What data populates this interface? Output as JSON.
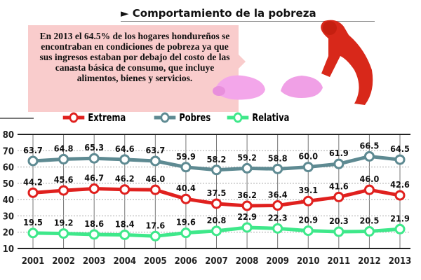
{
  "title": "► Comportamiento de la pobreza",
  "note": "En 2013 el 64.5% de los hogares hondureños se encontraban en condiciones de pobreza ya que sus ingresos estaban por debajo del costo de las canasta básica de consumo, que incluye alimentos, bienes y servicios.",
  "illustration": "broken piggy bank and person",
  "chart_data": {
    "type": "line",
    "x": [
      "2001",
      "2002",
      "2003",
      "2004",
      "2005",
      "2006",
      "2007",
      "2008",
      "2009",
      "2010",
      "2011",
      "2012",
      "2013"
    ],
    "ylim": [
      10,
      80
    ],
    "yticks": [
      10,
      20,
      30,
      40,
      50,
      60,
      70,
      80
    ],
    "grid": true,
    "legend_position": "top",
    "series": [
      {
        "name": "Extrema",
        "color": "#e0201e",
        "values": [
          44.2,
          45.6,
          46.7,
          46.2,
          46.0,
          40.4,
          37.5,
          36.2,
          36.4,
          39.1,
          41.6,
          46.0,
          42.6
        ],
        "labels": [
          "44.2",
          "45.6",
          "46.7",
          "46.2",
          "46.0",
          "40.4",
          "37.5",
          "36.2",
          "36.4",
          "39.1",
          "41.6",
          "46.0",
          "42.6"
        ]
      },
      {
        "name": "Pobres",
        "color": "#5e8a92",
        "values": [
          63.7,
          64.8,
          65.3,
          64.6,
          63.7,
          59.9,
          58.2,
          59.2,
          58.8,
          60.0,
          61.9,
          66.5,
          64.5
        ],
        "labels": [
          "63.7",
          "64.8",
          "65.3",
          "64.6",
          "63.7",
          "59.9",
          "58.2",
          "59.2",
          "58.8",
          "60.0",
          "61.9",
          "66.5",
          "64.5"
        ]
      },
      {
        "name": "Relativa",
        "color": "#3ee88a",
        "values": [
          19.5,
          19.2,
          18.6,
          18.4,
          17.6,
          19.6,
          20.8,
          22.9,
          22.3,
          20.9,
          20.3,
          20.5,
          21.9
        ],
        "labels": [
          "19.5",
          "19.2",
          "18.6",
          "18.4",
          "17.6",
          "19.6",
          "20.8",
          "22.9",
          "22.3",
          "20.9",
          "20.3",
          "20.5",
          "21.9"
        ]
      }
    ]
  }
}
